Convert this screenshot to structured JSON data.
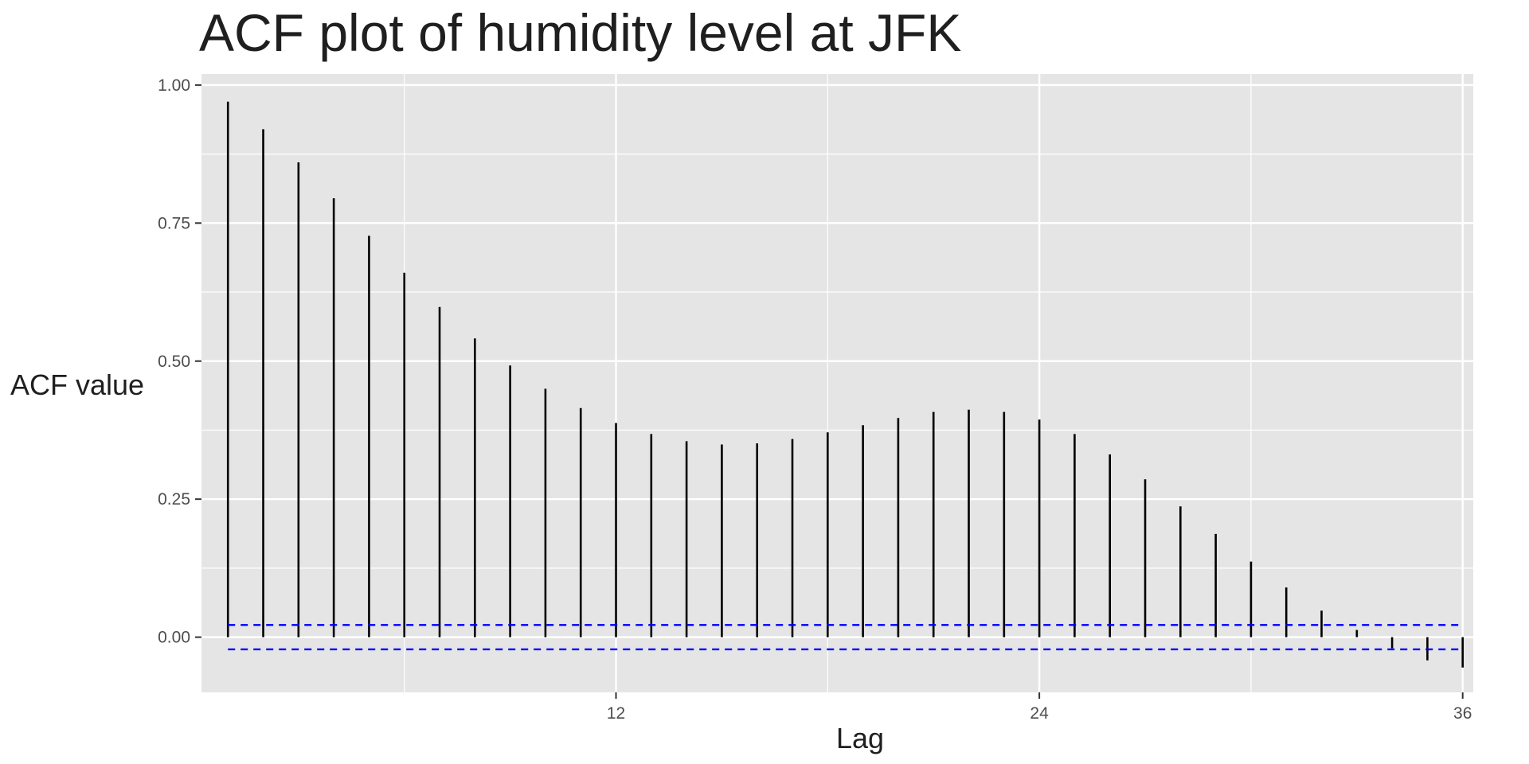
{
  "chart_data": {
    "type": "bar",
    "title": "ACF plot of humidity level at JFK",
    "xlabel": "Lag",
    "ylabel": "ACF value",
    "x": [
      1,
      2,
      3,
      4,
      5,
      6,
      7,
      8,
      9,
      10,
      11,
      12,
      13,
      14,
      15,
      16,
      17,
      18,
      19,
      20,
      21,
      22,
      23,
      24,
      25,
      26,
      27,
      28,
      29,
      30,
      31,
      32,
      33,
      34,
      35,
      36
    ],
    "values": [
      0.97,
      0.92,
      0.86,
      0.795,
      0.727,
      0.66,
      0.598,
      0.541,
      0.492,
      0.45,
      0.415,
      0.388,
      0.368,
      0.355,
      0.349,
      0.351,
      0.359,
      0.371,
      0.384,
      0.397,
      0.408,
      0.412,
      0.408,
      0.394,
      0.368,
      0.331,
      0.286,
      0.237,
      0.187,
      0.137,
      0.09,
      0.048,
      0.013,
      -0.02,
      -0.042,
      -0.055
    ],
    "confidence_bound": 0.0221,
    "xlim": [
      0.25,
      36.3
    ],
    "ylim": [
      -0.1,
      1.02
    ],
    "x_ticks": [
      12,
      24,
      36
    ],
    "x_tick_labels": [
      "12",
      "24",
      "36"
    ],
    "y_ticks": [
      0.0,
      0.25,
      0.5,
      0.75,
      1.0
    ],
    "y_tick_labels": [
      "0.00",
      "0.25",
      "0.50",
      "0.75",
      "1.00"
    ],
    "x_minor_ticks": [
      6,
      18,
      30
    ],
    "grid": true,
    "legend": "none",
    "colors": {
      "panel": "#e5e5e5",
      "grid": "#ffffff",
      "bar": "#000000",
      "confidence_line": "#0000ff",
      "tick": "#333333"
    }
  }
}
